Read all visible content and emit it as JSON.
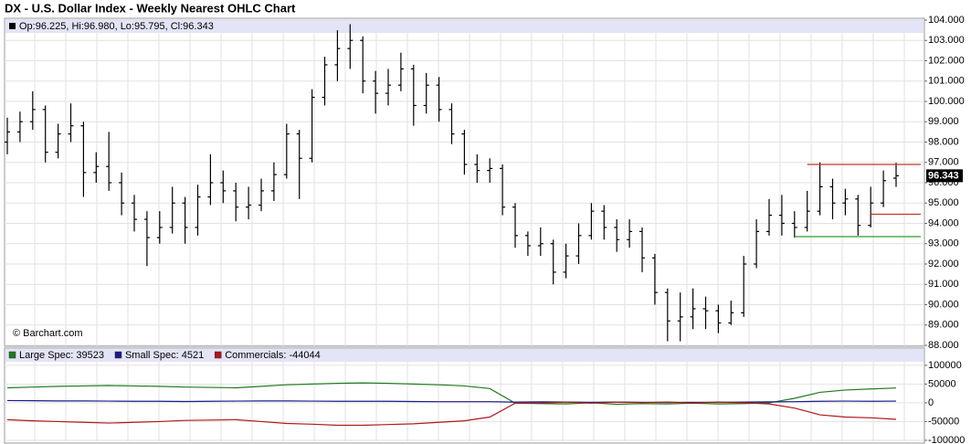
{
  "chart_data": [
    {
      "type": "ohlc",
      "title": "DX - U.S. Dollar Index - Weekly Nearest OHLC Chart",
      "info": "Op:96.225, Hi:96.980, Lo:95.795, Cl:96.343",
      "credit": "© Barchart.com",
      "color": "#000000",
      "grid": true,
      "open": [
        98.0,
        98.5,
        99.0,
        99.6,
        97.5,
        98.4,
        98.8,
        96.5,
        96.8,
        96.0,
        95.0,
        94.2,
        93.3,
        93.8,
        95.0,
        93.8,
        95.3,
        96.0,
        95.6,
        94.8,
        94.9,
        95.6,
        96.4,
        98.4,
        97.2,
        100.2,
        101.8,
        102.6,
        103.0,
        101.0,
        100.4,
        100.8,
        101.6,
        99.8,
        100.8,
        99.6,
        98.4,
        96.9,
        96.6,
        96.7,
        94.8,
        93.4,
        92.9,
        93.0,
        91.6,
        92.4,
        93.4,
        94.6,
        93.8,
        93.2,
        93.6,
        92.3,
        90.6,
        89.2,
        89.4,
        89.8,
        89.7,
        89.1,
        89.6,
        92.0,
        93.6,
        94.4,
        94.0,
        93.8,
        94.6,
        95.8,
        95.0,
        95.2,
        93.9,
        95.0,
        96.225
      ],
      "high": [
        99.2,
        99.5,
        100.5,
        99.8,
        98.9,
        99.9,
        99.0,
        97.5,
        98.5,
        96.5,
        95.4,
        94.6,
        94.6,
        95.8,
        95.3,
        95.9,
        97.4,
        96.6,
        96.0,
        95.8,
        96.2,
        97.0,
        98.9,
        98.6,
        100.6,
        102.2,
        103.5,
        103.8,
        103.2,
        101.5,
        101.6,
        102.4,
        101.8,
        101.4,
        101.2,
        99.9,
        98.6,
        97.4,
        97.2,
        96.9,
        95.0,
        93.6,
        93.8,
        93.2,
        93.0,
        94.0,
        95.0,
        94.9,
        94.2,
        94.2,
        93.8,
        92.5,
        90.8,
        90.6,
        90.8,
        90.4,
        90.0,
        90.2,
        92.4,
        94.2,
        95.2,
        95.4,
        94.6,
        95.6,
        97.0,
        96.2,
        95.7,
        95.4,
        95.8,
        96.6,
        96.98
      ],
      "low": [
        97.4,
        98.0,
        98.6,
        97.0,
        97.2,
        98.0,
        95.3,
        96.0,
        95.6,
        94.4,
        93.6,
        91.9,
        93.0,
        93.5,
        93.0,
        93.4,
        94.9,
        95.0,
        94.1,
        94.2,
        94.6,
        95.1,
        96.2,
        95.2,
        97.0,
        99.8,
        101.0,
        101.6,
        100.4,
        99.4,
        99.8,
        100.5,
        98.8,
        99.4,
        99.0,
        97.9,
        96.4,
        96.0,
        96.0,
        94.4,
        92.8,
        92.4,
        92.4,
        91.0,
        91.3,
        92.0,
        93.2,
        93.2,
        92.6,
        92.8,
        91.6,
        90.0,
        88.2,
        88.2,
        88.8,
        88.8,
        88.6,
        89.0,
        89.4,
        91.8,
        93.4,
        93.4,
        93.3,
        93.6,
        94.4,
        94.2,
        94.4,
        93.4,
        93.8,
        94.8,
        95.795
      ],
      "close": [
        98.5,
        99.0,
        99.6,
        97.5,
        98.4,
        98.8,
        96.5,
        96.8,
        96.0,
        95.0,
        94.2,
        93.3,
        93.8,
        95.0,
        93.8,
        95.3,
        96.0,
        95.6,
        94.8,
        94.9,
        95.6,
        96.4,
        98.4,
        97.2,
        100.2,
        101.8,
        102.6,
        103.0,
        101.0,
        100.4,
        100.8,
        101.6,
        99.8,
        100.8,
        99.6,
        98.4,
        96.9,
        96.6,
        96.7,
        94.8,
        93.4,
        92.9,
        93.0,
        91.6,
        92.4,
        93.4,
        94.6,
        93.8,
        93.2,
        93.6,
        92.3,
        90.6,
        89.2,
        89.4,
        89.8,
        89.7,
        89.1,
        89.6,
        92.0,
        93.6,
        94.4,
        94.0,
        93.8,
        94.6,
        95.8,
        95.0,
        95.2,
        93.9,
        95.0,
        96.1,
        96.343
      ],
      "levels": [
        {
          "value": 96.9,
          "start": 63,
          "color": "#c0392b"
        },
        {
          "value": 94.45,
          "start": 68,
          "color": "#c0392b"
        },
        {
          "value": 93.35,
          "start": 62,
          "color": "#2e9e2e"
        }
      ],
      "ylim": [
        88,
        104
      ],
      "yticks": [
        {
          "value": 88,
          "label": "88.000"
        },
        {
          "value": 89,
          "label": "89.000"
        },
        {
          "value": 90,
          "label": "90.000"
        },
        {
          "value": 91,
          "label": "91.000"
        },
        {
          "value": 92,
          "label": "92.000"
        },
        {
          "value": 93,
          "label": "93.000"
        },
        {
          "value": 94,
          "label": "94.000"
        },
        {
          "value": 95,
          "label": "95.000"
        },
        {
          "value": 96,
          "label": "96.000"
        },
        {
          "value": 97,
          "label": "97.000"
        },
        {
          "value": 98,
          "label": "98.000"
        },
        {
          "value": 99,
          "label": "99.000"
        },
        {
          "value": 100,
          "label": "100.000"
        },
        {
          "value": 101,
          "label": "101.000"
        },
        {
          "value": 102,
          "label": "102.000"
        },
        {
          "value": 103,
          "label": "103.000"
        },
        {
          "value": 104,
          "label": "104.000"
        }
      ]
    },
    {
      "type": "line",
      "grid": true,
      "series": [
        {
          "name": "Large Spec: 39523",
          "color": "#1e7b1e",
          "values": [
            40000,
            42000,
            44000,
            45000,
            46000,
            45000,
            44000,
            42000,
            41000,
            40000,
            44000,
            48000,
            50000,
            52000,
            53000,
            52000,
            50000,
            48000,
            45000,
            38000,
            -1000,
            -2000,
            -3000,
            0,
            -4000,
            -2000,
            -3000,
            -1000,
            -3000,
            -2000,
            0,
            12000,
            28000,
            34000,
            37000,
            39523
          ]
        },
        {
          "name": "Small Spec: 4521",
          "color": "#1a1a8c",
          "values": [
            6000,
            5500,
            5000,
            5000,
            4500,
            4000,
            4000,
            3500,
            4000,
            4500,
            5000,
            5000,
            4500,
            4000,
            4000,
            4000,
            3500,
            3000,
            3000,
            3000,
            2000,
            2500,
            2000,
            1500,
            2000,
            1500,
            1000,
            1500,
            1500,
            2000,
            2500,
            3000,
            4000,
            4500,
            4000,
            4521
          ]
        },
        {
          "name": "Commercials: -44044",
          "color": "#b01818",
          "values": [
            -45000,
            -48000,
            -50000,
            -52000,
            -54000,
            -52000,
            -50000,
            -47000,
            -46000,
            -45000,
            -50000,
            -55000,
            -57000,
            -60000,
            -60000,
            -58000,
            -56000,
            -52000,
            -48000,
            -38000,
            -1000,
            -500,
            2000,
            -1000,
            2000,
            500,
            2000,
            -500,
            2000,
            0,
            -3000,
            -14000,
            -32000,
            -38000,
            -40000,
            -44044
          ]
        }
      ],
      "ylim": [
        -105000,
        107000
      ],
      "yticks": [
        100000,
        50000,
        0,
        -50000,
        -100000
      ]
    }
  ]
}
